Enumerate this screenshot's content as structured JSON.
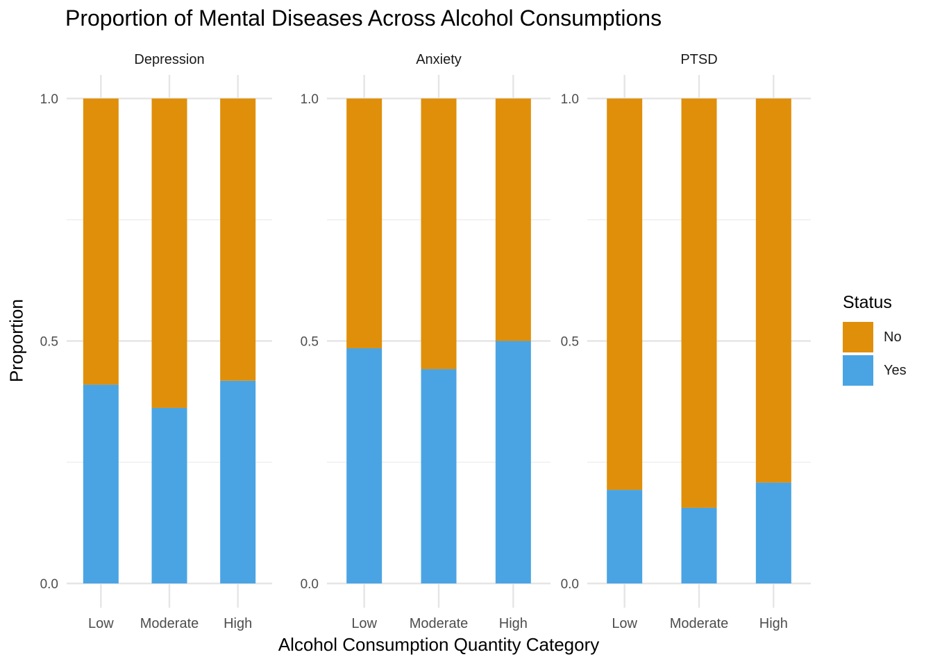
{
  "chart_data": {
    "type": "bar",
    "stacked": true,
    "title": "Proportion of Mental Diseases Across Alcohol Consumptions",
    "xlabel": "Alcohol Consumption Quantity Category",
    "ylabel": "Proportion",
    "ylim": [
      0,
      1
    ],
    "yticks": [
      "0.0",
      "0.5",
      "1.0"
    ],
    "grid": true,
    "legend": {
      "title": "Status",
      "position": "right",
      "items": [
        {
          "label": "No",
          "color": "#E08F0A"
        },
        {
          "label": "Yes",
          "color": "#4AA4E3"
        }
      ]
    },
    "facets": [
      {
        "name": "Depression",
        "categories": [
          "Low",
          "Moderate",
          "High"
        ],
        "series": [
          {
            "name": "Yes",
            "color": "#4AA4E3",
            "values": [
              0.41,
              0.362,
              0.418
            ]
          },
          {
            "name": "No",
            "color": "#E08F0A",
            "values": [
              0.59,
              0.638,
              0.582
            ]
          }
        ]
      },
      {
        "name": "Anxiety",
        "categories": [
          "Low",
          "Moderate",
          "High"
        ],
        "series": [
          {
            "name": "Yes",
            "color": "#4AA4E3",
            "values": [
              0.485,
              0.442,
              0.5
            ]
          },
          {
            "name": "No",
            "color": "#E08F0A",
            "values": [
              0.515,
              0.558,
              0.5
            ]
          }
        ]
      },
      {
        "name": "PTSD",
        "categories": [
          "Low",
          "Moderate",
          "High"
        ],
        "series": [
          {
            "name": "Yes",
            "color": "#4AA4E3",
            "values": [
              0.193,
              0.156,
              0.208
            ]
          },
          {
            "name": "No",
            "color": "#E08F0A",
            "values": [
              0.807,
              0.844,
              0.792
            ]
          }
        ]
      }
    ]
  }
}
